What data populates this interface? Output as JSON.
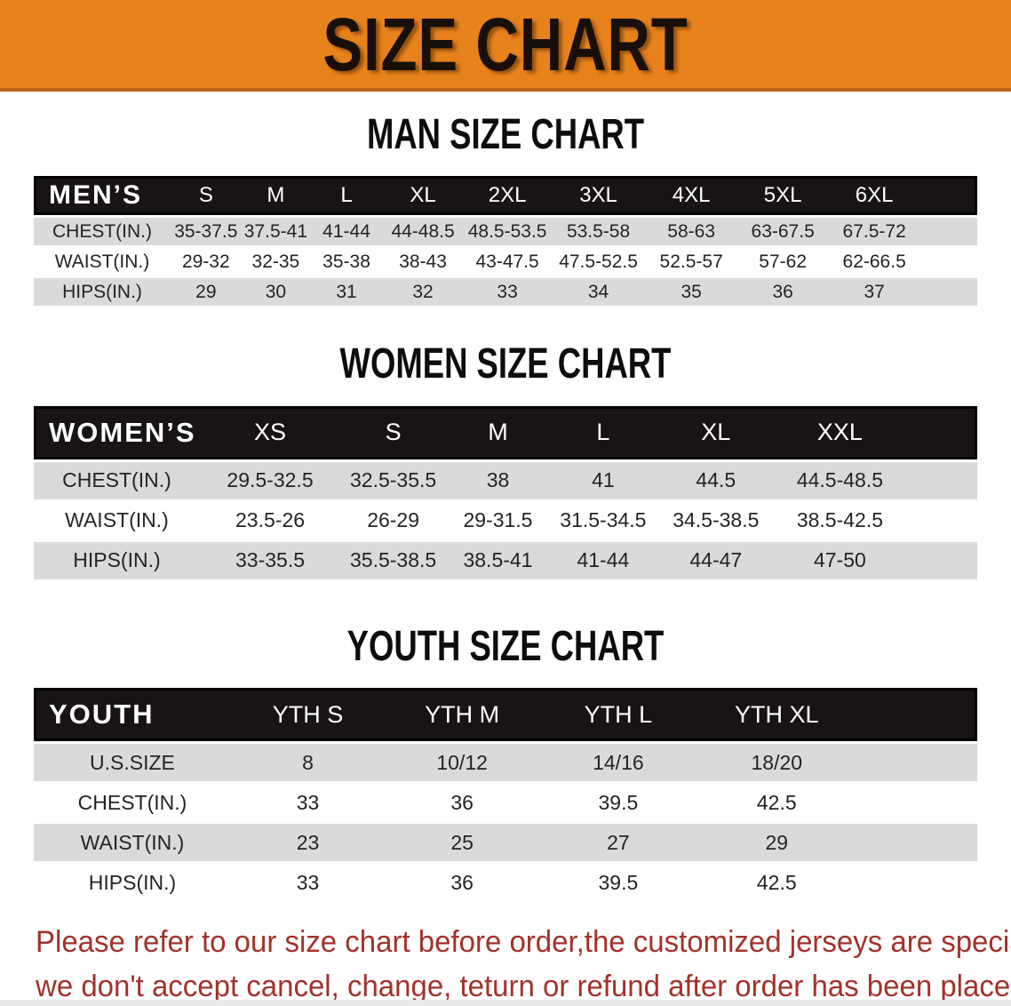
{
  "banner": {
    "title": "SIZE CHART"
  },
  "sections": [
    {
      "heading": "MAN SIZE CHART",
      "table": {
        "label": "MEN’S",
        "columns": [
          "S",
          "M",
          "L",
          "XL",
          "2XL",
          "3XL",
          "4XL",
          "5XL",
          "6XL"
        ],
        "rows": [
          {
            "label": "CHEST(IN.)",
            "values": [
              "35-37.5",
              "37.5-41",
              "41-44",
              "44-48.5",
              "48.5-53.5",
              "53.5-58",
              "58-63",
              "63-67.5",
              "67.5-72"
            ]
          },
          {
            "label": "WAIST(IN.)",
            "values": [
              "29-32",
              "32-35",
              "35-38",
              "38-43",
              "43-47.5",
              "47.5-52.5",
              "52.5-57",
              "57-62",
              "62-66.5"
            ]
          },
          {
            "label": "HIPS(IN.)",
            "values": [
              "29",
              "30",
              "31",
              "32",
              "33",
              "34",
              "35",
              "36",
              "37"
            ]
          }
        ]
      }
    },
    {
      "heading": "WOMEN SIZE CHART",
      "table": {
        "label": "WOMEN’S",
        "columns": [
          "XS",
          "S",
          "M",
          "L",
          "XL",
          "XXL"
        ],
        "rows": [
          {
            "label": "CHEST(IN.)",
            "values": [
              "29.5-32.5",
              "32.5-35.5",
              "38",
              "41",
              "44.5",
              "44.5-48.5"
            ]
          },
          {
            "label": "WAIST(IN.)",
            "values": [
              "23.5-26",
              "26-29",
              "29-31.5",
              "31.5-34.5",
              "34.5-38.5",
              "38.5-42.5"
            ]
          },
          {
            "label": "HIPS(IN.)",
            "values": [
              "33-35.5",
              "35.5-38.5",
              "38.5-41",
              "41-44",
              "44-47",
              "47-50"
            ]
          }
        ]
      }
    },
    {
      "heading": "YOUTH SIZE CHART",
      "table": {
        "label": "YOUTH",
        "columns": [
          "YTH S",
          "YTH M",
          "YTH L",
          "YTH XL"
        ],
        "rows": [
          {
            "label": "U.S.SIZE",
            "values": [
              "8",
              "10/12",
              "14/16",
              "18/20"
            ]
          },
          {
            "label": "CHEST(IN.)",
            "values": [
              "33",
              "36",
              "39.5",
              "42.5"
            ]
          },
          {
            "label": "WAIST(IN.)",
            "values": [
              "23",
              "25",
              "27",
              "29"
            ]
          },
          {
            "label": "HIPS(IN.)",
            "values": [
              "33",
              "36",
              "39.5",
              "42.5"
            ]
          }
        ]
      }
    }
  ],
  "footer": {
    "line1": "Please refer to our size chart before order,the customized jerseys are special products,",
    "line2": "we don't accept cancel, change, teturn or refund after order has been placed!"
  },
  "colors": {
    "banner_orange": "#E8821C",
    "banner_border": "#C2641B",
    "header_black": "#181414",
    "row_gray": "#DADADA",
    "notice_red": "#A2322A"
  }
}
